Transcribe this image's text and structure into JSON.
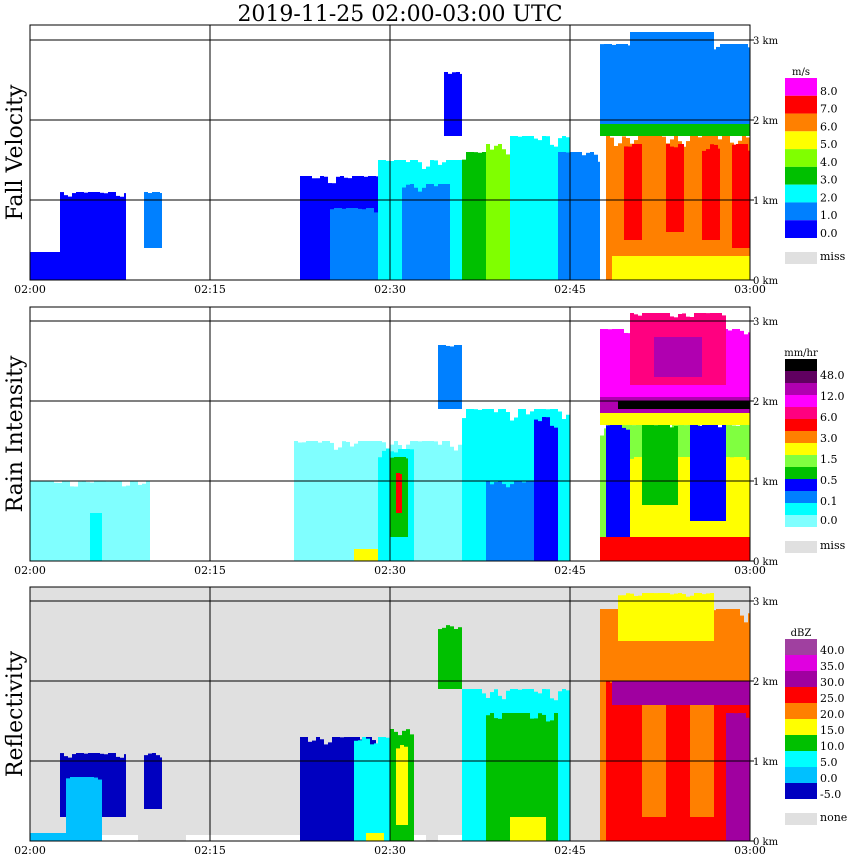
{
  "chart_data": {
    "type": "heatmap",
    "title": "2019-11-25   02:00-03:00 UTC",
    "x_ticks": [
      "02:00",
      "02:15",
      "02:30",
      "02:45",
      "03:00"
    ],
    "x_range_minutes": [
      0,
      60
    ],
    "y_ticks": [
      "0 km",
      "1 km",
      "2 km",
      "3 km"
    ],
    "y_range_km": [
      0,
      3.2
    ],
    "grid": true,
    "panels": [
      {
        "name": "fall-velocity",
        "ylabel": "Fall Velocity",
        "unit": "m/s",
        "legend_labels": [
          "8.0",
          "7.0",
          "6.0",
          "5.0",
          "4.0",
          "3.0",
          "2.0",
          "1.0",
          "0.0"
        ],
        "colors": [
          "#0000ff",
          "#0080ff",
          "#00ffff",
          "#00c000",
          "#80ff00",
          "#ffff00",
          "#ff8000",
          "#ff0000",
          "#ff00ff"
        ],
        "missing_label": "miss",
        "background": "#ffffff",
        "blobs": [
          [
            0,
            8,
            0,
            0.35,
            0
          ],
          [
            2.5,
            8,
            0.3,
            1.1,
            0
          ],
          [
            9.5,
            11,
            0.4,
            1.1,
            1
          ],
          [
            22.5,
            29,
            0,
            1.3,
            0
          ],
          [
            25,
            29,
            0,
            0.9,
            1
          ],
          [
            29,
            36,
            0,
            1.5,
            2
          ],
          [
            31,
            35,
            0,
            1.2,
            1
          ],
          [
            34.5,
            36,
            1.8,
            2.6,
            0
          ],
          [
            36,
            40,
            0,
            1.6,
            3
          ],
          [
            38,
            41,
            0,
            1.7,
            4
          ],
          [
            40,
            45,
            0,
            1.8,
            2
          ],
          [
            44,
            47.5,
            0,
            1.6,
            1
          ],
          [
            47.5,
            60,
            1.9,
            2.95,
            1
          ],
          [
            50,
            57,
            2.8,
            3.1,
            1
          ],
          [
            47.5,
            60,
            1.8,
            1.95,
            3
          ],
          [
            48,
            60,
            0,
            1.8,
            6
          ],
          [
            49.5,
            51,
            0.5,
            1.7,
            7
          ],
          [
            53,
            54.5,
            0.6,
            1.7,
            7
          ],
          [
            56,
            57.5,
            0.5,
            1.7,
            7
          ],
          [
            58.5,
            60,
            0.4,
            1.7,
            7
          ],
          [
            48.5,
            60,
            0,
            0.3,
            5
          ]
        ]
      },
      {
        "name": "rain-intensity",
        "ylabel": "Rain Intensity",
        "unit": "mm/hr",
        "legend_labels": [
          "48.0",
          "12.0",
          "6.0",
          "3.0",
          "1.5",
          "0.5",
          "0.1",
          "0.0"
        ],
        "colors": [
          "#80ffff",
          "#00ffff",
          "#0080ff",
          "#0000ff",
          "#00c000",
          "#80ff40",
          "#ffff00",
          "#ff8000",
          "#ff0000",
          "#ff0080",
          "#ff00ff",
          "#b000b0",
          "#600060",
          "#000000"
        ],
        "missing_label": "miss",
        "background": "#ffffff",
        "blobs": [
          [
            0,
            10,
            0,
            1.0,
            0
          ],
          [
            5,
            6,
            0,
            0.6,
            1
          ],
          [
            22,
            36,
            0,
            1.5,
            0
          ],
          [
            27,
            29,
            0,
            0.15,
            6
          ],
          [
            29,
            32,
            0,
            1.4,
            1
          ],
          [
            30,
            31.5,
            0.3,
            1.3,
            4
          ],
          [
            30.5,
            31,
            0.6,
            1.1,
            8
          ],
          [
            34,
            36,
            1.9,
            2.7,
            2
          ],
          [
            36,
            45,
            0,
            1.9,
            1
          ],
          [
            38,
            44,
            0,
            1.0,
            2
          ],
          [
            42,
            44,
            0,
            1.8,
            3
          ],
          [
            47.5,
            60,
            0,
            1.7,
            5
          ],
          [
            48,
            60,
            0,
            1.3,
            6
          ],
          [
            48,
            50,
            0,
            1.7,
            3
          ],
          [
            51,
            54,
            0.7,
            1.7,
            4
          ],
          [
            55,
            58,
            0.5,
            1.7,
            3
          ],
          [
            47.5,
            60,
            0,
            0.3,
            8
          ],
          [
            47.5,
            60,
            1.7,
            1.85,
            6
          ],
          [
            47.5,
            60,
            1.85,
            2.05,
            11
          ],
          [
            49,
            60,
            1.9,
            2.0,
            13
          ],
          [
            47.5,
            60,
            2.05,
            2.9,
            10
          ],
          [
            50,
            58,
            2.2,
            3.1,
            9
          ],
          [
            52,
            56,
            2.3,
            2.8,
            11
          ]
        ]
      },
      {
        "name": "reflectivity",
        "ylabel": "Reflectivity",
        "unit": "dBZ",
        "legend_labels": [
          "40.0",
          "35.0",
          "30.0",
          "25.0",
          "20.0",
          "15.0",
          "10.0",
          "5.0",
          "0.0",
          "-5.0"
        ],
        "colors": [
          "#0000c0",
          "#00c0ff",
          "#00ffff",
          "#00c000",
          "#ffff00",
          "#ff8000",
          "#ff0000",
          "#a000a0",
          "#e000e0",
          "#a040a0"
        ],
        "missing_label": "none",
        "background": "#e0e0e0",
        "blobs": [
          [
            0,
            6,
            0,
            0.1,
            1
          ],
          [
            2.5,
            8,
            0.3,
            1.1,
            0
          ],
          [
            3,
            6,
            0.1,
            0.8,
            1
          ],
          [
            9.5,
            11,
            0.4,
            1.1,
            0
          ],
          [
            22.5,
            29,
            0,
            1.3,
            0
          ],
          [
            27,
            30,
            0,
            1.3,
            2
          ],
          [
            28,
            29.5,
            0,
            0.1,
            4
          ],
          [
            30,
            32,
            0,
            1.4,
            3
          ],
          [
            30.5,
            31.5,
            0.2,
            1.2,
            4
          ],
          [
            34,
            36,
            1.9,
            2.7,
            3
          ],
          [
            36,
            45,
            0,
            1.9,
            2
          ],
          [
            38,
            44,
            0,
            1.6,
            3
          ],
          [
            40,
            43,
            0,
            0.3,
            4
          ],
          [
            47.5,
            60,
            0,
            2.9,
            5
          ],
          [
            49,
            57,
            2.5,
            3.1,
            4
          ],
          [
            48,
            60,
            0,
            2.0,
            6
          ],
          [
            51,
            53,
            0.3,
            2.0,
            5
          ],
          [
            55,
            57,
            0.3,
            2.0,
            5
          ],
          [
            48.5,
            60,
            1.7,
            2.0,
            7
          ],
          [
            58,
            60,
            0,
            1.6,
            7
          ]
        ]
      }
    ]
  }
}
